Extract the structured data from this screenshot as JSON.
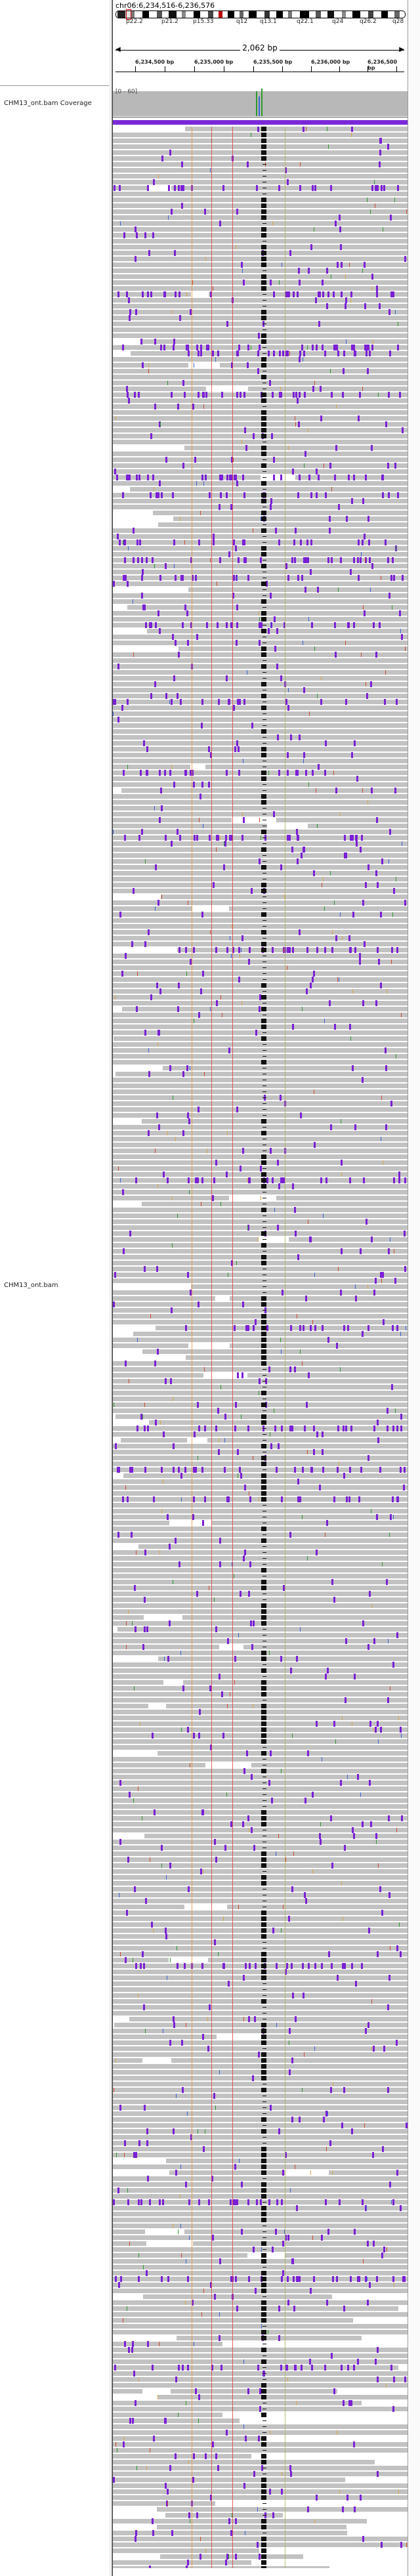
{
  "locus": "chr06:6,234,516-6,236,576",
  "ideogram": {
    "band_labels": [
      "p22.2",
      "p21.2",
      "p15.33",
      "q12",
      "q13.1",
      "q22.1",
      "q24",
      "q26.2",
      "q28"
    ]
  },
  "scale": {
    "span_label": "2,062 bp"
  },
  "ruler": {
    "labels": [
      "6,234,500 bp",
      "6,235,000 bp",
      "6,235,500 bp",
      "6,236,000 bp",
      "6,236,500 bp"
    ]
  },
  "tracks": {
    "coverage": {
      "name": "CHM13_ont.bam Coverage",
      "range": "[0 - 60]"
    },
    "alignment": {
      "name": "CHM13_ont.bam"
    }
  },
  "colors": {
    "read": "#c2c2c2",
    "insertion": "#7b1fd6",
    "mismatch_a": "#d7a64a",
    "mismatch_c": "#3a64d8",
    "mismatch_g": "#d04a2a",
    "mismatch_t": "#2a9a2a",
    "vline_orange": "#e6953a",
    "vline_red": "#e04040"
  }
}
